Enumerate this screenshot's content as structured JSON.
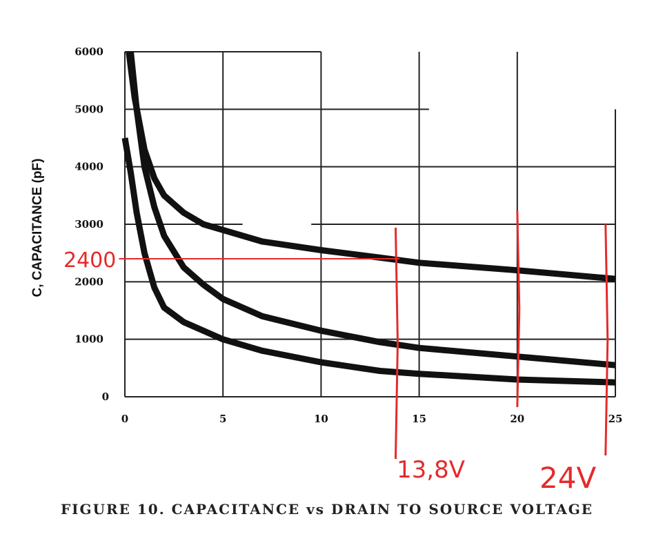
{
  "chart_data": {
    "type": "line",
    "title": "FIGURE 10. CAPACITANCE vs DRAIN TO SOURCE VOLTAGE",
    "xlabel": "",
    "ylabel": "C, CAPACITANCE (pF)",
    "xlim": [
      0,
      25
    ],
    "ylim": [
      0,
      6000
    ],
    "xticks": [
      "0",
      "5",
      "10",
      "15",
      "20",
      "25"
    ],
    "yticks": [
      "0",
      "1000",
      "2000",
      "3000",
      "4000",
      "5000",
      "6000"
    ],
    "grid": true,
    "series": [
      {
        "x": [
          0.2,
          0.5,
          1,
          1.5,
          2,
          3,
          4,
          5,
          7,
          10,
          13,
          15,
          20,
          25
        ],
        "y": [
          6000,
          5200,
          4300,
          3800,
          3500,
          3200,
          3000,
          2900,
          2700,
          2550,
          2420,
          2330,
          2200,
          2050
        ]
      },
      {
        "x": [
          0.3,
          0.6,
          1,
          1.5,
          2,
          3,
          4,
          5,
          7,
          10,
          13,
          15,
          20,
          25
        ],
        "y": [
          6000,
          5000,
          4000,
          3300,
          2800,
          2250,
          1950,
          1700,
          1400,
          1150,
          950,
          850,
          700,
          550
        ]
      },
      {
        "x": [
          0,
          0.3,
          0.6,
          1,
          1.5,
          2,
          3,
          4,
          5,
          7,
          10,
          13,
          15,
          20,
          25
        ],
        "y": [
          4500,
          3900,
          3200,
          2500,
          1900,
          1550,
          1300,
          1150,
          1000,
          800,
          600,
          450,
          400,
          300,
          250
        ]
      }
    ],
    "annotations": {
      "color": "#e52a2a",
      "hline_value": 2400,
      "hline_label": "2400",
      "vlines": [
        13.8,
        20,
        24.5
      ],
      "vline_labels": [
        "13,8V",
        "24V"
      ]
    }
  }
}
